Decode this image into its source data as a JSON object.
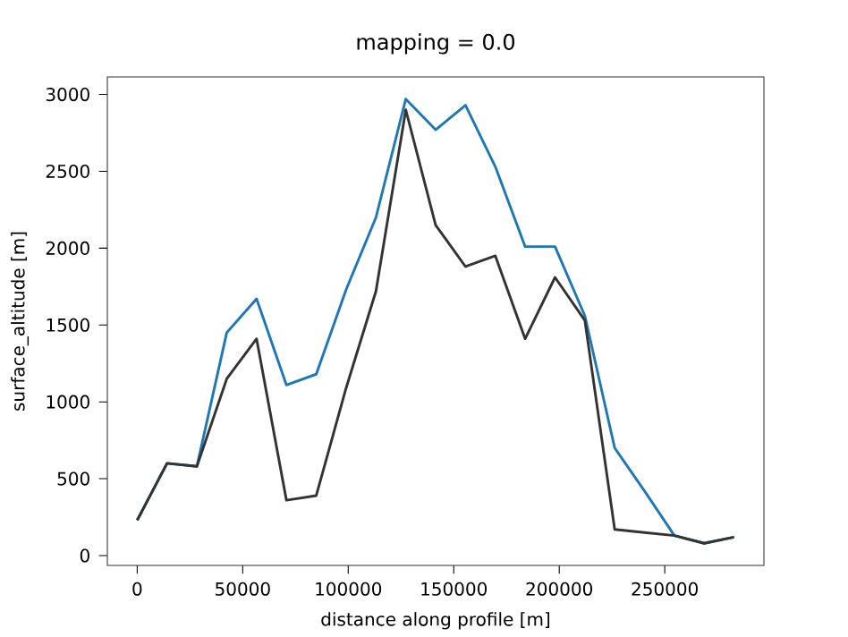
{
  "chart_data": {
    "type": "line",
    "title": "mapping = 0.0",
    "xlabel": "distance along profile [m]",
    "ylabel": "surface_altitude [m]",
    "x": [
      0,
      14142,
      28284,
      42426,
      56569,
      70711,
      84853,
      98995,
      113137,
      127279,
      141421,
      155563,
      169706,
      183848,
      197990,
      212132,
      226274,
      240416,
      254558,
      268701,
      282843
    ],
    "series": [
      {
        "color": "#1f77b4",
        "values": [
          230,
          600,
          580,
          1450,
          1670,
          1110,
          1180,
          1730,
          2200,
          2970,
          2770,
          2930,
          2530,
          2010,
          2010,
          1560,
          700,
          420,
          130,
          80,
          120
        ]
      },
      {
        "color": "#333333",
        "values": [
          230,
          600,
          580,
          1150,
          1410,
          360,
          390,
          1090,
          1720,
          2900,
          2150,
          1880,
          1950,
          1410,
          1810,
          1530,
          170,
          150,
          130,
          80,
          120
        ]
      }
    ],
    "xlim": [
      -14142,
      296985
    ],
    "ylim": [
      -64,
      3114
    ],
    "xticks": [
      0,
      50000,
      100000,
      150000,
      200000,
      250000
    ],
    "yticks": [
      0,
      500,
      1000,
      1500,
      2000,
      2500,
      3000
    ],
    "grid": false,
    "marker": "none",
    "line_style": "solid"
  }
}
